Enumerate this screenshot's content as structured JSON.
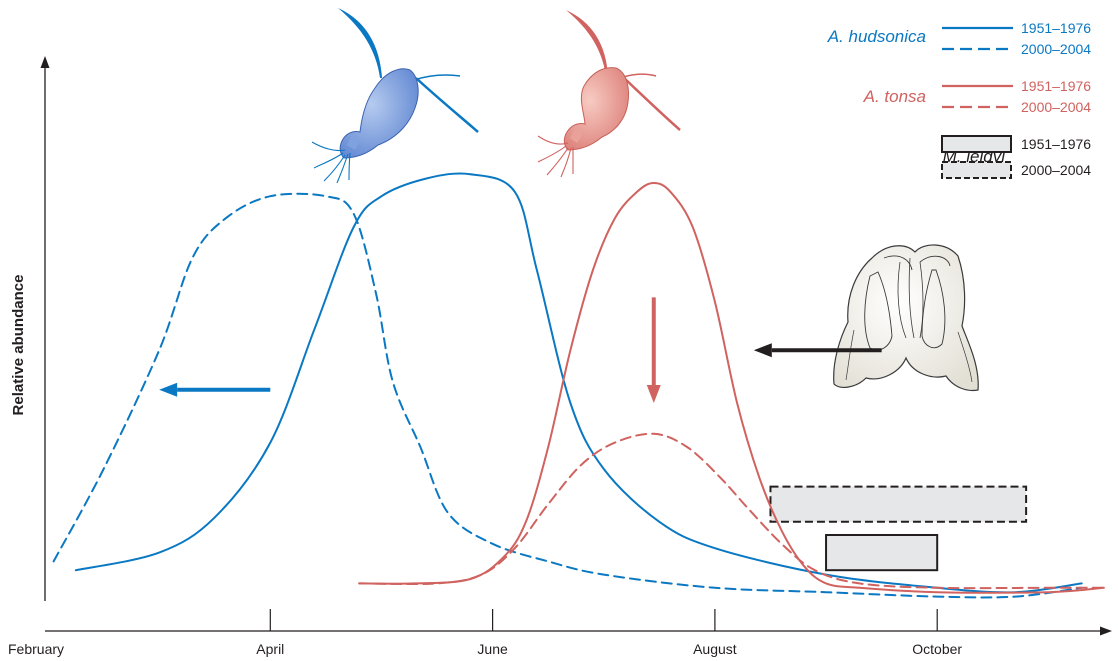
{
  "chart_data": {
    "type": "line",
    "title": "",
    "xlabel": "",
    "ylabel": "Relative abundance",
    "x_ticks": [
      "February",
      "April",
      "June",
      "August",
      "October"
    ],
    "x_units": "month index (February = 0)",
    "xlim": [
      0,
      9.5
    ],
    "ylim": [
      0,
      1
    ],
    "legend_placement": "top-right",
    "grid": false,
    "colors": {
      "hudsonica": "#0a78c2",
      "tonsa": "#d0625f",
      "leidyi": "#231f20",
      "leidyi_fill": "#e6e7e8",
      "axis": "#231f20"
    },
    "species": {
      "hudsonica": "A. hudsonica",
      "tonsa": "A. tonsa",
      "leidyi": "M. leidyi"
    },
    "periods": [
      "1951–1976",
      "2000–2004"
    ],
    "series": [
      {
        "name": "A. hudsonica",
        "period": "1951–1976",
        "color": "#0a78c2",
        "dash": false,
        "points": [
          [
            0.25,
            0.07
          ],
          [
            1,
            0.11
          ],
          [
            1.5,
            0.19
          ],
          [
            2,
            0.36
          ],
          [
            2.4,
            0.62
          ],
          [
            2.75,
            0.85
          ],
          [
            3,
            0.92
          ],
          [
            3.4,
            0.96
          ],
          [
            3.8,
            0.97
          ],
          [
            4.2,
            0.93
          ],
          [
            4.4,
            0.75
          ],
          [
            4.7,
            0.45
          ],
          [
            5,
            0.3
          ],
          [
            5.5,
            0.18
          ],
          [
            6,
            0.12
          ],
          [
            7,
            0.06
          ],
          [
            8,
            0.03
          ],
          [
            8.7,
            0.02
          ],
          [
            9.3,
            0.04
          ]
        ]
      },
      {
        "name": "A. hudsonica",
        "period": "2000–2004",
        "color": "#0a78c2",
        "dash": true,
        "points": [
          [
            0.05,
            0.09
          ],
          [
            0.5,
            0.3
          ],
          [
            1,
            0.57
          ],
          [
            1.3,
            0.78
          ],
          [
            1.6,
            0.87
          ],
          [
            2,
            0.92
          ],
          [
            2.5,
            0.92
          ],
          [
            2.75,
            0.88
          ],
          [
            2.95,
            0.7
          ],
          [
            3.1,
            0.5
          ],
          [
            3.35,
            0.35
          ],
          [
            3.6,
            0.2
          ],
          [
            4,
            0.13
          ],
          [
            4.5,
            0.09
          ],
          [
            5,
            0.06
          ],
          [
            6,
            0.03
          ],
          [
            7,
            0.02
          ],
          [
            8,
            0.01
          ],
          [
            8.7,
            0.01
          ],
          [
            9.3,
            0.03
          ]
        ]
      },
      {
        "name": "A. tonsa",
        "period": "1951–1976",
        "color": "#d0625f",
        "dash": false,
        "points": [
          [
            2.8,
            0.04
          ],
          [
            3.3,
            0.04
          ],
          [
            3.8,
            0.05
          ],
          [
            4.1,
            0.1
          ],
          [
            4.3,
            0.18
          ],
          [
            4.5,
            0.35
          ],
          [
            4.7,
            0.57
          ],
          [
            4.9,
            0.75
          ],
          [
            5.1,
            0.87
          ],
          [
            5.3,
            0.93
          ],
          [
            5.45,
            0.95
          ],
          [
            5.6,
            0.93
          ],
          [
            5.8,
            0.85
          ],
          [
            6,
            0.68
          ],
          [
            6.2,
            0.45
          ],
          [
            6.4,
            0.28
          ],
          [
            6.6,
            0.16
          ],
          [
            6.8,
            0.08
          ],
          [
            7,
            0.04
          ],
          [
            7.3,
            0.03
          ],
          [
            8,
            0.02
          ],
          [
            9,
            0.02
          ],
          [
            9.5,
            0.03
          ]
        ]
      },
      {
        "name": "A. tonsa",
        "period": "2000–2004",
        "color": "#d0625f",
        "dash": true,
        "points": [
          [
            2.8,
            0.04
          ],
          [
            3.5,
            0.04
          ],
          [
            3.9,
            0.06
          ],
          [
            4.2,
            0.12
          ],
          [
            4.5,
            0.22
          ],
          [
            4.8,
            0.31
          ],
          [
            5.1,
            0.36
          ],
          [
            5.45,
            0.38
          ],
          [
            5.75,
            0.35
          ],
          [
            6.05,
            0.28
          ],
          [
            6.3,
            0.21
          ],
          [
            6.6,
            0.13
          ],
          [
            6.9,
            0.07
          ],
          [
            7.3,
            0.04
          ],
          [
            8,
            0.03
          ],
          [
            9,
            0.03
          ],
          [
            9.5,
            0.03
          ]
        ]
      }
    ],
    "bars": [
      {
        "name": "M. leidyi",
        "period": "2000–2004",
        "x_start": 6.5,
        "x_end": 8.8,
        "y_low": 0.18,
        "y_high": 0.26,
        "dash": true
      },
      {
        "name": "M. leidyi",
        "period": "1951–1976",
        "x_start": 7,
        "x_end": 8,
        "y_low": 0.07,
        "y_high": 0.15,
        "dash": false
      }
    ],
    "annotations": [
      {
        "type": "arrow",
        "meaning": "earlier shift",
        "color": "#0a78c2",
        "from": [
          2,
          0.48
        ],
        "to": [
          1,
          0.48
        ]
      },
      {
        "type": "arrow",
        "meaning": "decline",
        "color": "#d0625f",
        "from": [
          5.45,
          0.69
        ],
        "to": [
          5.45,
          0.45
        ]
      },
      {
        "type": "arrow",
        "meaning": "earlier arrival",
        "color": "#231f20",
        "from": [
          7.5,
          0.57
        ],
        "to": [
          6.35,
          0.57
        ]
      }
    ],
    "illustrations": [
      {
        "name": "copepod-hudsonica-icon",
        "color": "#6f96db"
      },
      {
        "name": "copepod-tonsa-icon",
        "color": "#e8958f"
      },
      {
        "name": "ctenophore-icon",
        "color": "#eceae2"
      }
    ]
  }
}
